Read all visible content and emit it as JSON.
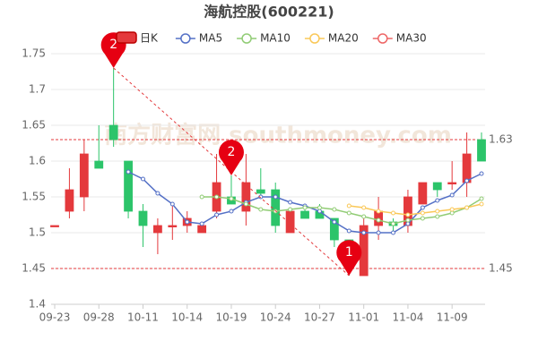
{
  "chart_data": {
    "type": "candlestick",
    "title": "海航控股(600221)",
    "watermark": "南方财富网 southmoney.com",
    "categories": [
      "09-23",
      null,
      null,
      "09-28",
      null,
      null,
      "10-11",
      null,
      null,
      "10-14",
      null,
      null,
      "10-19",
      null,
      null,
      "10-24",
      null,
      null,
      "10-27",
      null,
      null,
      "11-01",
      null,
      null,
      "11-04",
      null,
      null,
      "11-09",
      null,
      null
    ],
    "candles": {
      "name": "日K",
      "up_color": "#e4393c",
      "down_color": "#2cc46a",
      "open": [
        1.51,
        1.53,
        1.55,
        1.6,
        1.65,
        1.6,
        1.53,
        1.5,
        1.508,
        1.51,
        1.5,
        1.53,
        1.55,
        1.53,
        1.56,
        1.56,
        1.5,
        1.53,
        1.53,
        1.52,
        1.49,
        1.44,
        1.51,
        1.515,
        1.51,
        1.54,
        1.57,
        1.568,
        1.57,
        1.63
      ],
      "high": [
        1.51,
        1.59,
        1.63,
        1.65,
        1.73,
        1.6,
        1.54,
        1.52,
        1.54,
        1.53,
        1.51,
        1.61,
        1.58,
        1.61,
        1.59,
        1.57,
        1.53,
        1.54,
        1.54,
        1.52,
        1.49,
        1.52,
        1.55,
        1.52,
        1.56,
        1.57,
        1.57,
        1.6,
        1.64,
        1.64
      ],
      "low": [
        1.51,
        1.52,
        1.53,
        1.59,
        1.62,
        1.52,
        1.48,
        1.47,
        1.49,
        1.5,
        1.5,
        1.52,
        1.54,
        1.51,
        1.55,
        1.5,
        1.5,
        1.52,
        1.52,
        1.48,
        1.44,
        1.44,
        1.49,
        1.5,
        1.5,
        1.54,
        1.55,
        1.56,
        1.55,
        1.6
      ],
      "close": [
        1.51,
        1.56,
        1.61,
        1.59,
        1.63,
        1.53,
        1.51,
        1.51,
        1.51,
        1.52,
        1.51,
        1.57,
        1.54,
        1.57,
        1.555,
        1.51,
        1.53,
        1.52,
        1.52,
        1.49,
        1.48,
        1.51,
        1.53,
        1.51,
        1.55,
        1.57,
        1.56,
        1.57,
        1.61,
        1.6
      ]
    },
    "series": [
      {
        "name": "MA5",
        "color": "#5470c6",
        "values": [
          null,
          null,
          null,
          null,
          null,
          1.585,
          1.575,
          1.555,
          1.54,
          1.515,
          1.5125,
          1.525,
          1.53,
          1.5425,
          1.55,
          1.55,
          1.5425,
          1.5375,
          1.53,
          1.515,
          1.5025,
          1.5,
          1.5,
          1.5,
          1.5125,
          1.535,
          1.545,
          1.5525,
          1.5725,
          1.5825
        ]
      },
      {
        "name": "MA10",
        "color": "#91cc75",
        "values": [
          null,
          null,
          null,
          null,
          null,
          null,
          null,
          null,
          null,
          null,
          1.55,
          1.55,
          1.5475,
          1.54,
          1.5325,
          1.53,
          1.5325,
          1.535,
          1.535,
          1.5325,
          1.5275,
          1.5225,
          1.5175,
          1.5125,
          1.5175,
          1.52,
          1.5225,
          1.5275,
          1.535,
          1.5475
        ]
      },
      {
        "name": "MA20",
        "color": "#fac858",
        "values": [
          null,
          null,
          null,
          null,
          null,
          null,
          null,
          null,
          null,
          null,
          null,
          null,
          null,
          null,
          null,
          null,
          null,
          null,
          null,
          null,
          1.5375,
          1.535,
          1.53,
          1.5275,
          1.525,
          1.5275,
          1.53,
          1.5325,
          1.535,
          1.54
        ]
      },
      {
        "name": "MA30",
        "color": "#ee6666",
        "values": [
          null,
          null,
          null,
          null,
          null,
          null,
          null,
          null,
          null,
          null,
          null,
          null,
          null,
          null,
          null,
          null,
          null,
          null,
          null,
          null,
          null,
          null,
          null,
          null,
          null,
          null,
          null,
          null,
          null,
          null
        ]
      }
    ],
    "markers": [
      {
        "label": "2",
        "index": 4,
        "value": 1.73,
        "color": "#e60012"
      },
      {
        "label": "2",
        "index": 12,
        "value": 1.58,
        "color": "#e60012"
      },
      {
        "label": "1",
        "index": 20,
        "value": 1.44,
        "color": "#e60012"
      }
    ],
    "hlines": [
      1.63,
      1.45
    ],
    "ylim": [
      1.4,
      1.75
    ],
    "yticks": [
      1.4,
      1.45,
      1.5,
      1.55,
      1.6,
      1.65,
      1.7,
      1.75
    ],
    "grid": true
  }
}
